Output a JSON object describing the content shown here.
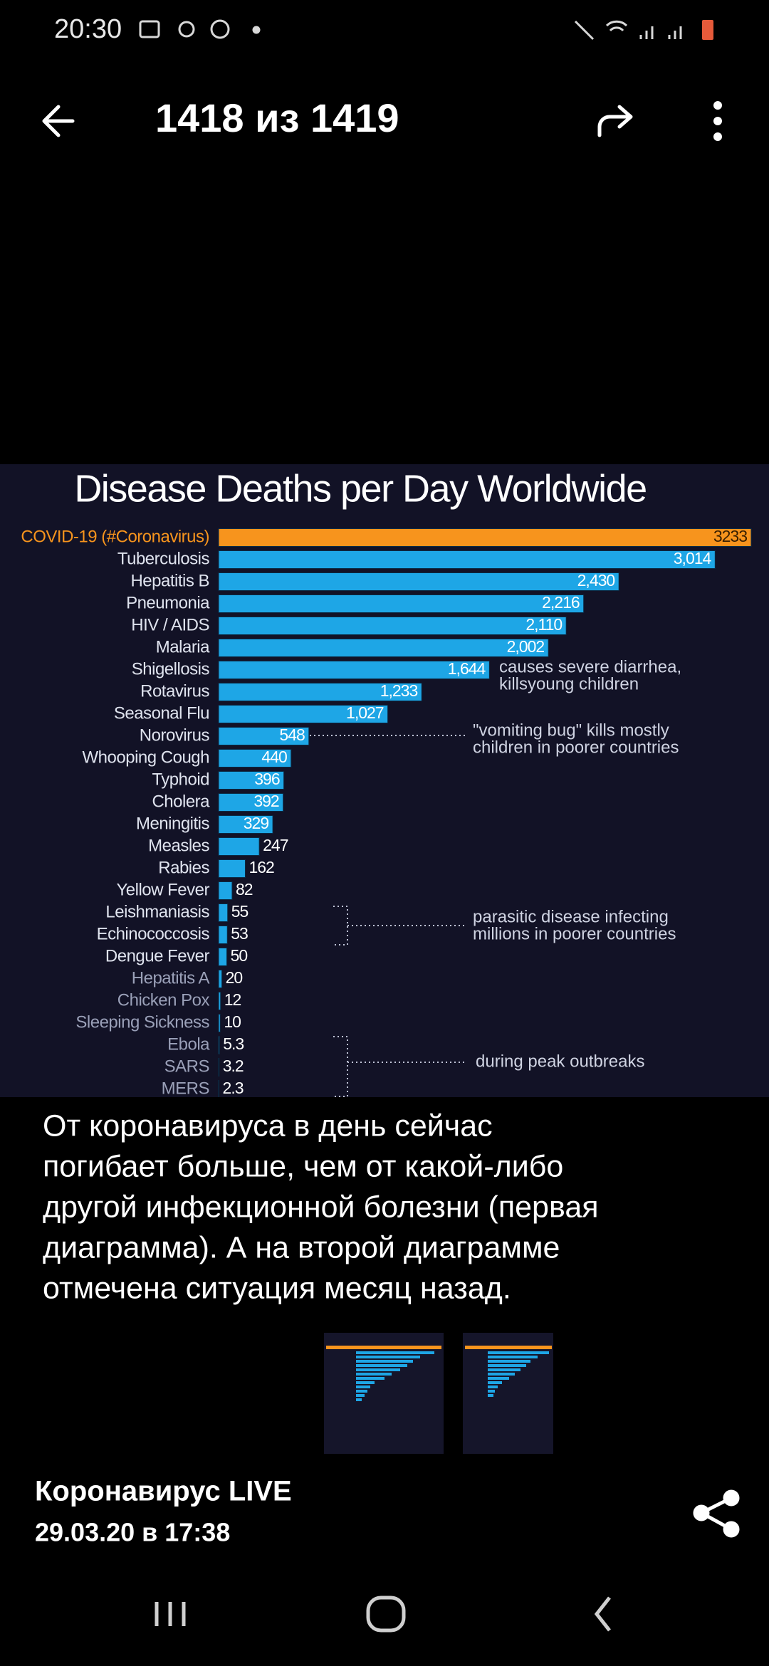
{
  "status_bar": {
    "time": "20:30"
  },
  "header": {
    "title": "1418 из 1419"
  },
  "chart_data": {
    "type": "bar",
    "orientation": "horizontal",
    "title": "Disease Deaths per Day Worldwide",
    "categories": [
      "COVID-19 (#Coronavirus)",
      "Tuberculosis",
      "Hepatitis B",
      "Pneumonia",
      "HIV / AIDS",
      "Malaria",
      "Shigellosis",
      "Rotavirus",
      "Seasonal Flu",
      "Norovirus",
      "Whooping Cough",
      "Typhoid",
      "Cholera",
      "Meningitis",
      "Measles",
      "Rabies",
      "Yellow Fever",
      "Leishmaniasis",
      "Echinococcosis",
      "Dengue Fever",
      "Hepatitis A",
      "Chicken Pox",
      "Sleeping Sickness",
      "Ebola",
      "SARS",
      "MERS"
    ],
    "values": [
      3233,
      3014,
      2430,
      2216,
      2110,
      2002,
      1644,
      1233,
      1027,
      548,
      440,
      396,
      392,
      329,
      247,
      162,
      82,
      55,
      53,
      50,
      20,
      12,
      10,
      5.3,
      3.2,
      2.3
    ],
    "value_labels": [
      "3233",
      "3,014",
      "2,430",
      "2,216",
      "2,110",
      "2,002",
      "1,644",
      "1,233",
      "1,027",
      "548",
      "440",
      "396",
      "392",
      "329",
      "247",
      "162",
      "82",
      "55",
      "53",
      "50",
      "20",
      "12",
      "10",
      "5.3",
      "3.2",
      "2.3"
    ],
    "colors": [
      "#f7941d",
      "#1ea6e6",
      "#1ea6e6",
      "#1ea6e6",
      "#1ea6e6",
      "#1ea6e6",
      "#1ea6e6",
      "#1ea6e6",
      "#1ea6e6",
      "#1ea6e6",
      "#1ea6e6",
      "#1ea6e6",
      "#1ea6e6",
      "#1ea6e6",
      "#1ea6e6",
      "#1ea6e6",
      "#1ea6e6",
      "#1ea6e6",
      "#1ea6e6",
      "#1ea6e6",
      "#1ea6e6",
      "#1ea6e6",
      "#1ea6e6",
      "#1ea6e6",
      "#1ea6e6",
      "#1ea6e6"
    ],
    "annotations": [
      {
        "lines": [
          "causes severe diarrhea,",
          "killsyoung children"
        ]
      },
      {
        "lines": [
          "\"vomiting bug\" kills mostly",
          "children in poorer countries"
        ]
      },
      {
        "lines": [
          "parasitic disease infecting",
          "millions in poorer countries"
        ]
      },
      {
        "lines": [
          "during peak outbreaks"
        ]
      }
    ]
  },
  "caption": {
    "lines": [
      "От коронавируса в день сейчас",
      "погибает больше, чем от какой-либо",
      "другой инфекционной болезни (первая",
      "диаграмма). А на второй диаграмме",
      "отмечена ситуация месяц назад."
    ]
  },
  "footer": {
    "channel": "Коронавирус LIVE",
    "timestamp": "29.03.20 в 17:38"
  }
}
